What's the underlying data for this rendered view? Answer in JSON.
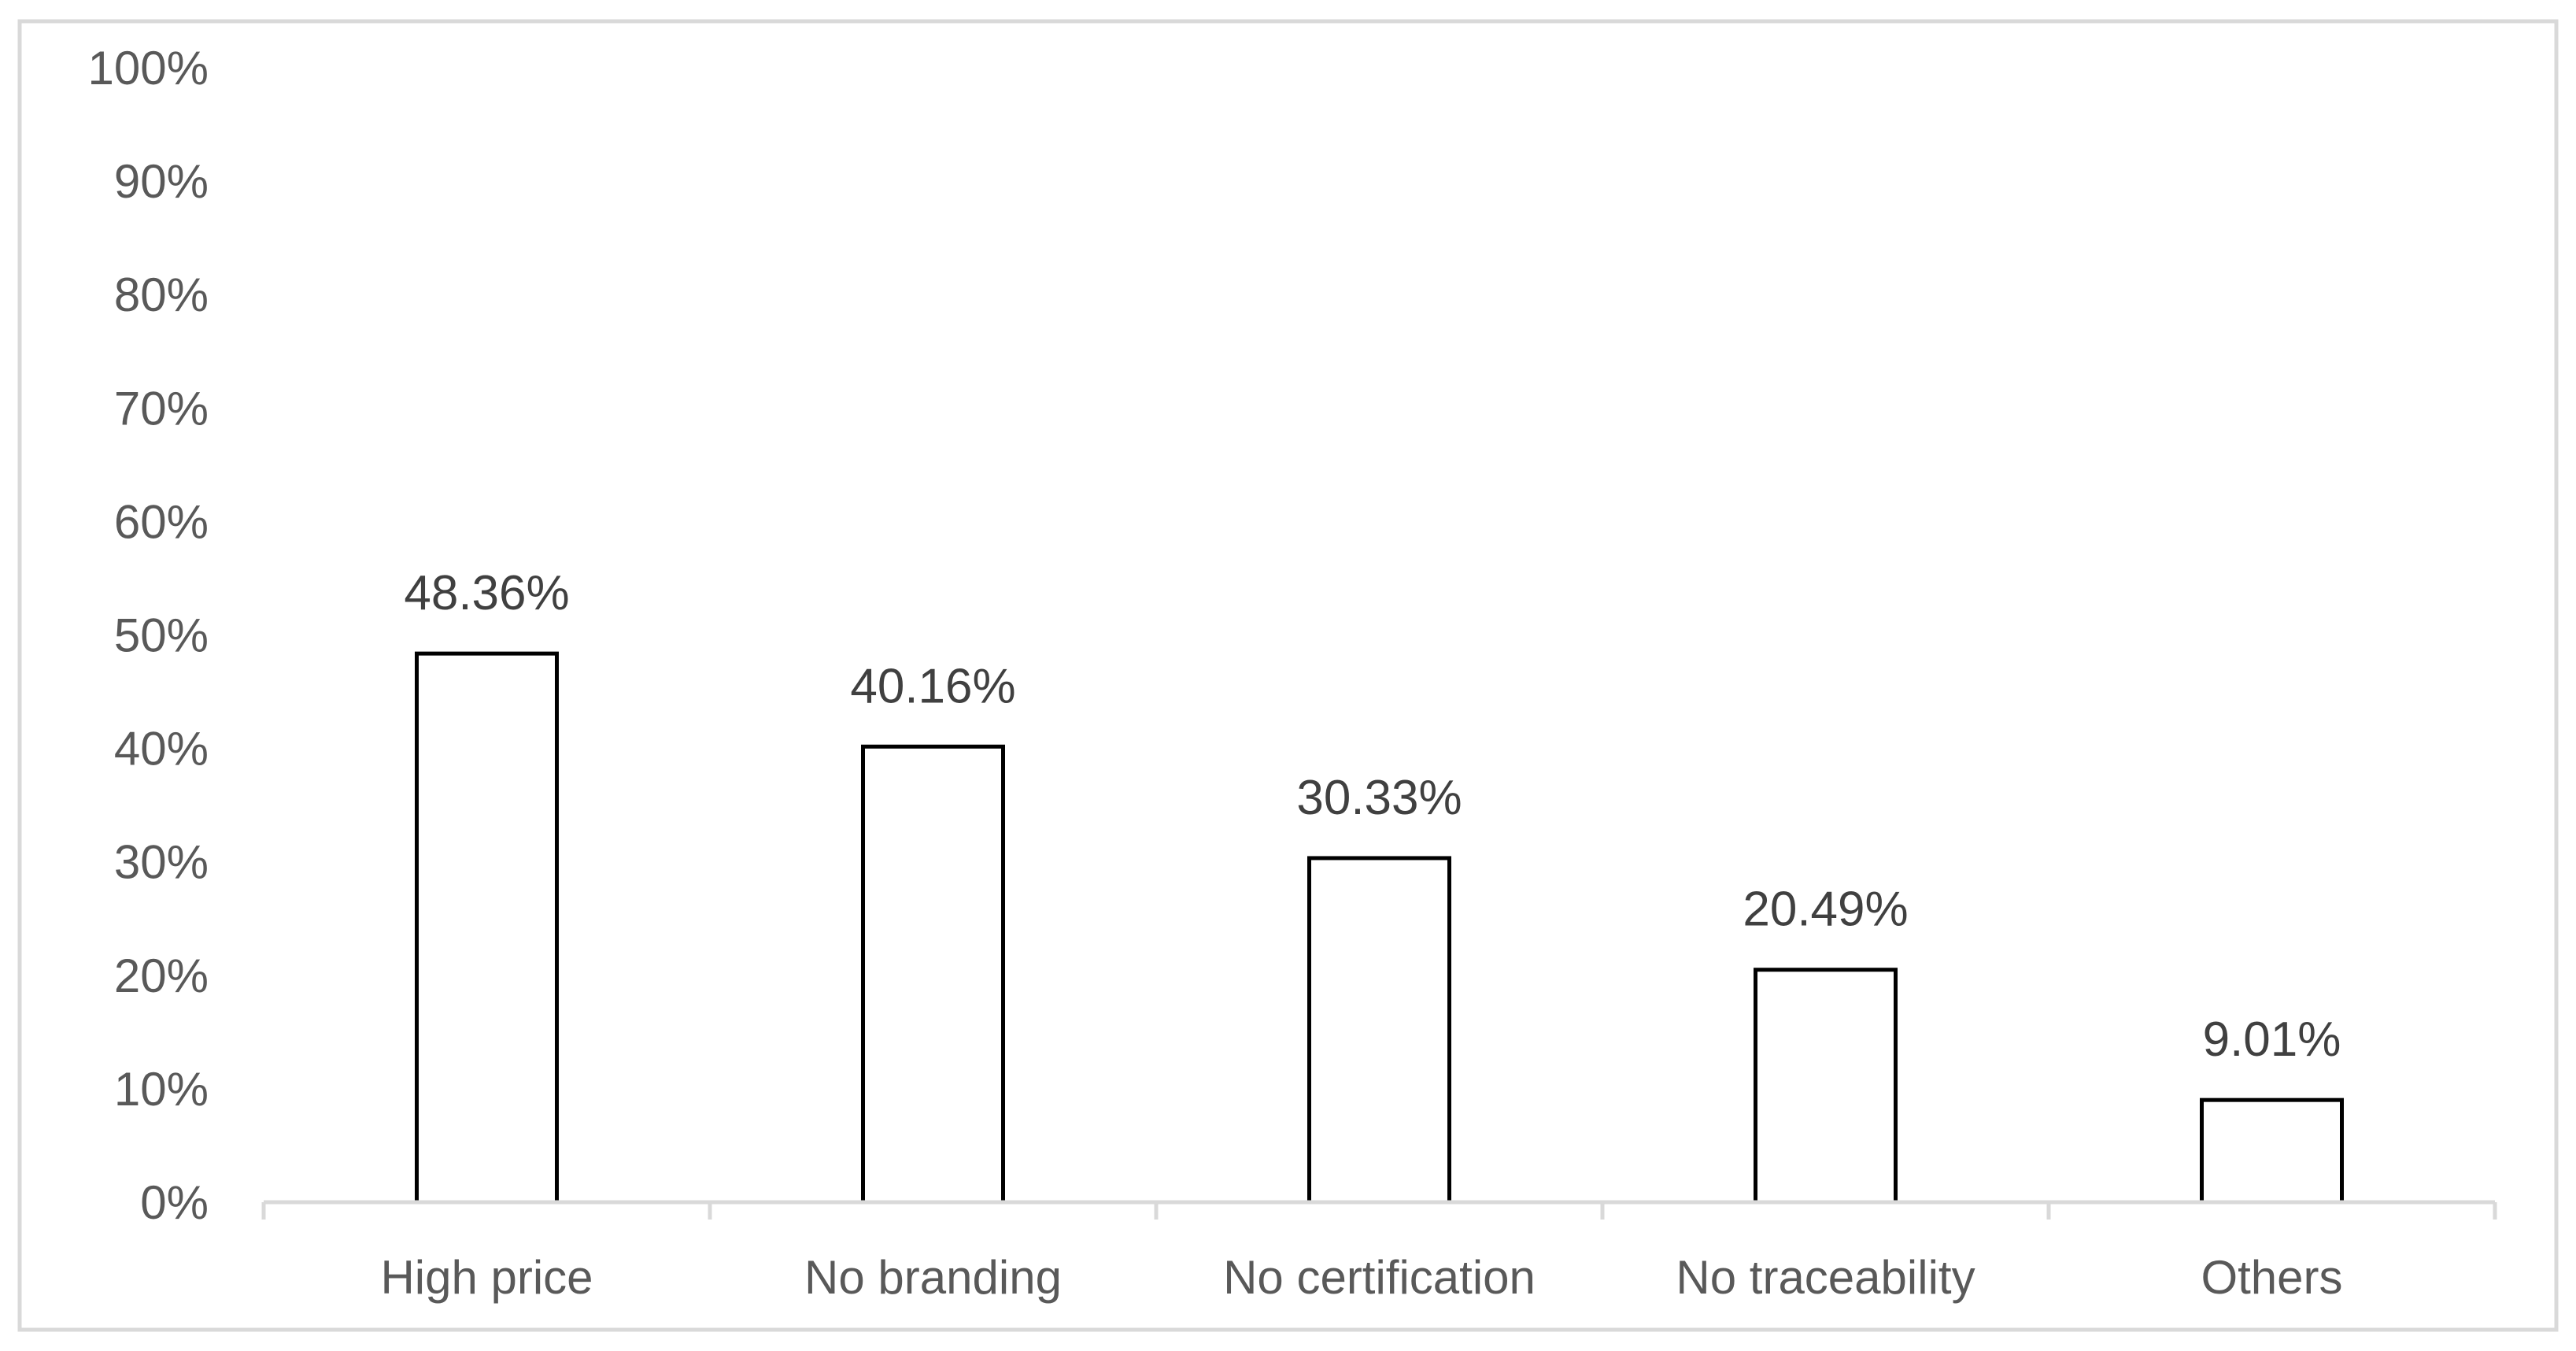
{
  "chart_data": {
    "type": "bar",
    "categories": [
      "High price",
      "No branding",
      "No certification",
      "No traceability",
      "Others"
    ],
    "values": [
      48.36,
      40.16,
      30.33,
      20.49,
      9.01
    ],
    "data_labels": [
      "48.36%",
      "40.16%",
      "30.33%",
      "20.49%",
      "9.01%"
    ],
    "ylim": [
      0,
      100
    ],
    "yticks": [
      0,
      10,
      20,
      30,
      40,
      50,
      60,
      70,
      80,
      90,
      100
    ],
    "ytick_labels": [
      "0%",
      "10%",
      "20%",
      "30%",
      "40%",
      "50%",
      "60%",
      "70%",
      "80%",
      "90%",
      "100%"
    ],
    "grid": false,
    "legend": "none",
    "colors": {
      "bar_fill": "#ffffff",
      "bar_stroke": "#000000",
      "axis": "#d9d9d9",
      "tick_text": "#595959",
      "label_text": "#404040"
    }
  }
}
